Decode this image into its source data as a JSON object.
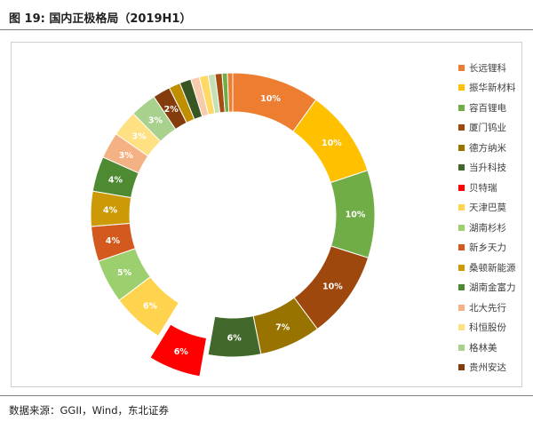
{
  "figure": {
    "title": "图 19: 国内正极格局（2019H1）",
    "source": "数据来源：GGII，Wind，东北证券"
  },
  "chart_data": {
    "type": "pie",
    "donut": true,
    "legend_position": "right",
    "series": [
      {
        "name": "长远锂科",
        "value": 10,
        "label": "10%",
        "color": "#ed7d31"
      },
      {
        "name": "振华新材料",
        "value": 10,
        "label": "10%",
        "color": "#ffc000"
      },
      {
        "name": "容百锂电",
        "value": 10,
        "label": "10%",
        "color": "#70ad47"
      },
      {
        "name": "厦门钨业",
        "value": 10,
        "label": "10%",
        "color": "#9e480e"
      },
      {
        "name": "德方纳米",
        "value": 7,
        "label": "7%",
        "color": "#997300"
      },
      {
        "name": "当升科技",
        "value": 6,
        "label": "6%",
        "color": "#43682b"
      },
      {
        "name": "贝特瑞",
        "value": 6,
        "label": "6%",
        "color": "#ff0000",
        "exploded": true
      },
      {
        "name": "天津巴莫",
        "value": 6,
        "label": "6%",
        "color": "#ffd34d"
      },
      {
        "name": "湖南杉杉",
        "value": 5,
        "label": "5%",
        "color": "#9ccf6e"
      },
      {
        "name": "新乡天力",
        "value": 4,
        "label": "4%",
        "color": "#d4591f"
      },
      {
        "name": "桑顿新能源",
        "value": 4,
        "label": "4%",
        "color": "#cc9a06"
      },
      {
        "name": "湖南金富力",
        "value": 4,
        "label": "4%",
        "color": "#4e8a32"
      },
      {
        "name": "北大先行",
        "value": 3,
        "label": "3%",
        "color": "#f4b183"
      },
      {
        "name": "科恒股份",
        "value": 3,
        "label": "3%",
        "color": "#ffe082"
      },
      {
        "name": "格林美",
        "value": 3,
        "label": "3%",
        "color": "#a9d18e"
      },
      {
        "name": "贵州安达",
        "value": 2,
        "label": "2%",
        "color": "#843c0c"
      },
      {
        "name": "",
        "value": 1.3,
        "label": "",
        "color": "#bf8f00"
      },
      {
        "name": "",
        "value": 1.3,
        "label": "",
        "color": "#375623"
      },
      {
        "name": "",
        "value": 1.0,
        "label": "",
        "color": "#f8cbad"
      },
      {
        "name": "",
        "value": 1.0,
        "label": "",
        "color": "#ffd966"
      },
      {
        "name": "",
        "value": 0.8,
        "label": "",
        "color": "#c5e0b4"
      },
      {
        "name": "",
        "value": 0.8,
        "label": "",
        "color": "#a64d14"
      },
      {
        "name": "",
        "value": 0.6,
        "label": "",
        "color": "#70ad47"
      },
      {
        "name": "",
        "value": 0.6,
        "label": "",
        "color": "#ed7d31"
      }
    ]
  }
}
